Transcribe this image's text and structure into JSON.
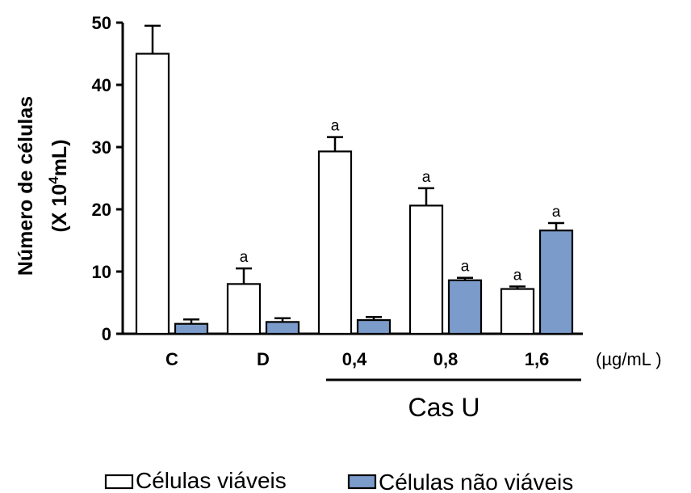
{
  "chart_data": {
    "type": "bar",
    "ylabel_line1": "Número de células",
    "ylabel_line2_prefix": "(X 10",
    "ylabel_line2_sup": "4",
    "ylabel_line2_suffix": "mL)",
    "ylim": [
      0,
      50
    ],
    "yticks": [
      "0",
      "10",
      "20",
      "30",
      "40",
      "50"
    ],
    "categories": [
      "C",
      "D",
      "0,4",
      "0,8",
      "1,6"
    ],
    "unit": "(µg/mL )",
    "group_label": "Cas U",
    "series": [
      {
        "name": "Células viáveis",
        "color": "#ffffff",
        "values": [
          45,
          8,
          29.3,
          20.6,
          7.2
        ],
        "errors": [
          4.5,
          2.5,
          2.3,
          2.8,
          0.4
        ],
        "annotations": [
          "",
          "a",
          "a",
          "a",
          "a"
        ]
      },
      {
        "name": "Células não viáveis",
        "color": "#7b9ccb",
        "values": [
          1.6,
          1.9,
          2.2,
          8.6,
          16.6
        ],
        "errors": [
          0.7,
          0.6,
          0.5,
          0.4,
          1.2
        ],
        "annotations": [
          "",
          "",
          "",
          "a",
          "a"
        ]
      }
    ]
  }
}
